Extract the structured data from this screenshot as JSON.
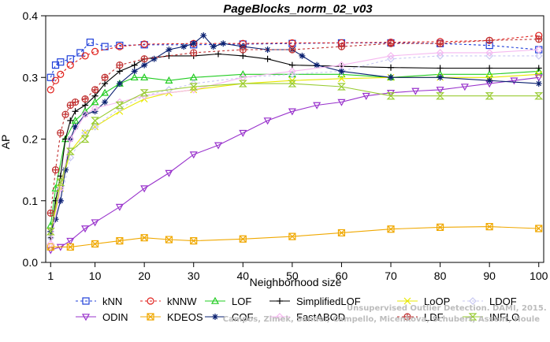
{
  "chart_data": {
    "type": "line",
    "title": "PageBlocks_norm_02_v03",
    "xlabel": "Neighborhood size",
    "ylabel": "AP",
    "xlim": [
      0,
      101
    ],
    "ylim": [
      0,
      0.4
    ],
    "x_ticks": [
      "1",
      "10",
      "20",
      "30",
      "40",
      "50",
      "60",
      "70",
      "80",
      "90",
      "100"
    ],
    "y_ticks": [
      "0.0",
      "0.1",
      "0.2",
      "0.3",
      "0.4"
    ],
    "grid": false,
    "legend_position": "bottom",
    "series": [
      {
        "name": "kNN",
        "color": "#1f3fd9",
        "marker": "square",
        "dash": "3,3",
        "points": [
          [
            1,
            0.3
          ],
          [
            2,
            0.32
          ],
          [
            3,
            0.325
          ],
          [
            5,
            0.33
          ],
          [
            7,
            0.34
          ],
          [
            9,
            0.357
          ],
          [
            12,
            0.35
          ],
          [
            15,
            0.352
          ],
          [
            20,
            0.353
          ],
          [
            30,
            0.353
          ],
          [
            40,
            0.354
          ],
          [
            50,
            0.355
          ],
          [
            60,
            0.356
          ],
          [
            70,
            0.356
          ],
          [
            80,
            0.355
          ],
          [
            90,
            0.352
          ],
          [
            100,
            0.345
          ]
        ]
      },
      {
        "name": "kNNW",
        "color": "#e0201c",
        "marker": "circle",
        "dash": "3,3",
        "points": [
          [
            1,
            0.28
          ],
          [
            2,
            0.295
          ],
          [
            3,
            0.305
          ],
          [
            5,
            0.32
          ],
          [
            8,
            0.335
          ],
          [
            10,
            0.342
          ],
          [
            15,
            0.35
          ],
          [
            20,
            0.354
          ],
          [
            30,
            0.355
          ],
          [
            40,
            0.355
          ],
          [
            50,
            0.356
          ],
          [
            60,
            0.356
          ],
          [
            70,
            0.357
          ],
          [
            80,
            0.358
          ],
          [
            90,
            0.36
          ],
          [
            100,
            0.368
          ]
        ]
      },
      {
        "name": "LOF",
        "color": "#22cc22",
        "marker": "triangle",
        "dash": "",
        "points": [
          [
            1,
            0.06
          ],
          [
            2,
            0.12
          ],
          [
            4,
            0.2
          ],
          [
            6,
            0.23
          ],
          [
            8,
            0.245
          ],
          [
            10,
            0.26
          ],
          [
            12,
            0.275
          ],
          [
            15,
            0.29
          ],
          [
            18,
            0.3
          ],
          [
            20,
            0.3
          ],
          [
            25,
            0.295
          ],
          [
            30,
            0.3
          ],
          [
            40,
            0.305
          ],
          [
            50,
            0.305
          ],
          [
            60,
            0.305
          ],
          [
            70,
            0.3
          ],
          [
            80,
            0.305
          ],
          [
            90,
            0.305
          ],
          [
            100,
            0.31
          ]
        ]
      },
      {
        "name": "SimplifiedLOF",
        "color": "#000000",
        "marker": "plus",
        "dash": "",
        "points": [
          [
            1,
            0.04
          ],
          [
            2,
            0.1
          ],
          [
            3,
            0.14
          ],
          [
            4,
            0.2
          ],
          [
            5,
            0.23
          ],
          [
            6,
            0.245
          ],
          [
            8,
            0.255
          ],
          [
            10,
            0.27
          ],
          [
            12,
            0.29
          ],
          [
            15,
            0.31
          ],
          [
            18,
            0.32
          ],
          [
            20,
            0.33
          ],
          [
            25,
            0.335
          ],
          [
            30,
            0.335
          ],
          [
            35,
            0.338
          ],
          [
            40,
            0.335
          ],
          [
            45,
            0.33
          ],
          [
            50,
            0.32
          ],
          [
            60,
            0.318
          ],
          [
            70,
            0.316
          ],
          [
            80,
            0.315
          ],
          [
            90,
            0.315
          ],
          [
            100,
            0.315
          ]
        ]
      },
      {
        "name": "LoOP",
        "color": "#e8e800",
        "marker": "x",
        "dash": "",
        "points": [
          [
            1,
            0.05
          ],
          [
            3,
            0.12
          ],
          [
            5,
            0.18
          ],
          [
            8,
            0.21
          ],
          [
            10,
            0.22
          ],
          [
            15,
            0.245
          ],
          [
            20,
            0.265
          ],
          [
            25,
            0.275
          ],
          [
            30,
            0.28
          ],
          [
            40,
            0.29
          ],
          [
            50,
            0.295
          ],
          [
            60,
            0.298
          ],
          [
            70,
            0.3
          ],
          [
            80,
            0.3
          ],
          [
            90,
            0.3
          ],
          [
            100,
            0.305
          ]
        ]
      },
      {
        "name": "LDOF",
        "color": "#c8c8f2",
        "marker": "diamond",
        "dash": "3,3",
        "points": [
          [
            1,
            0.04
          ],
          [
            3,
            0.1
          ],
          [
            5,
            0.17
          ],
          [
            8,
            0.21
          ],
          [
            10,
            0.22
          ],
          [
            15,
            0.25
          ],
          [
            20,
            0.27
          ],
          [
            25,
            0.28
          ],
          [
            30,
            0.29
          ],
          [
            40,
            0.3
          ],
          [
            50,
            0.305
          ],
          [
            60,
            0.31
          ],
          [
            70,
            0.33
          ],
          [
            80,
            0.335
          ],
          [
            90,
            0.335
          ],
          [
            100,
            0.335
          ]
        ]
      },
      {
        "name": "ODIN",
        "color": "#9933cc",
        "marker": "triangle-down",
        "dash": "",
        "points": [
          [
            1,
            0.02
          ],
          [
            3,
            0.025
          ],
          [
            5,
            0.035
          ],
          [
            8,
            0.055
          ],
          [
            10,
            0.065
          ],
          [
            15,
            0.09
          ],
          [
            20,
            0.12
          ],
          [
            25,
            0.145
          ],
          [
            30,
            0.175
          ],
          [
            35,
            0.19
          ],
          [
            40,
            0.21
          ],
          [
            45,
            0.23
          ],
          [
            50,
            0.245
          ],
          [
            55,
            0.255
          ],
          [
            60,
            0.26
          ],
          [
            65,
            0.27
          ],
          [
            70,
            0.275
          ],
          [
            75,
            0.278
          ],
          [
            80,
            0.28
          ],
          [
            85,
            0.285
          ],
          [
            90,
            0.29
          ],
          [
            95,
            0.295
          ],
          [
            100,
            0.3
          ]
        ]
      },
      {
        "name": "KDEOS",
        "color": "#f0a800",
        "marker": "square-x",
        "dash": "",
        "points": [
          [
            1,
            0.025
          ],
          [
            5,
            0.025
          ],
          [
            10,
            0.03
          ],
          [
            15,
            0.035
          ],
          [
            20,
            0.04
          ],
          [
            25,
            0.037
          ],
          [
            30,
            0.035
          ],
          [
            40,
            0.038
          ],
          [
            50,
            0.042
          ],
          [
            60,
            0.048
          ],
          [
            70,
            0.054
          ],
          [
            80,
            0.057
          ],
          [
            90,
            0.058
          ],
          [
            100,
            0.055
          ]
        ]
      },
      {
        "name": "COF",
        "color": "#0a2070",
        "marker": "asterisk",
        "dash": "",
        "points": [
          [
            1,
            0.05
          ],
          [
            2,
            0.07
          ],
          [
            3,
            0.1
          ],
          [
            4,
            0.15
          ],
          [
            5,
            0.2
          ],
          [
            6,
            0.22
          ],
          [
            8,
            0.24
          ],
          [
            10,
            0.245
          ],
          [
            12,
            0.26
          ],
          [
            15,
            0.29
          ],
          [
            18,
            0.31
          ],
          [
            20,
            0.32
          ],
          [
            22,
            0.33
          ],
          [
            25,
            0.345
          ],
          [
            28,
            0.35
          ],
          [
            30,
            0.355
          ],
          [
            32,
            0.368
          ],
          [
            34,
            0.35
          ],
          [
            36,
            0.355
          ],
          [
            40,
            0.35
          ],
          [
            45,
            0.345
          ],
          [
            50,
            0.345
          ],
          [
            52,
            0.335
          ],
          [
            55,
            0.32
          ],
          [
            60,
            0.31
          ],
          [
            70,
            0.3
          ],
          [
            80,
            0.3
          ],
          [
            90,
            0.295
          ],
          [
            100,
            0.29
          ]
        ]
      },
      {
        "name": "FastABOD",
        "color": "#f5b8f0",
        "marker": "diamond",
        "dash": "",
        "points": [
          [
            1,
            0.03
          ],
          [
            3,
            0.12
          ],
          [
            5,
            0.2
          ],
          [
            8,
            0.24
          ],
          [
            10,
            0.25
          ],
          [
            15,
            0.26
          ],
          [
            20,
            0.27
          ],
          [
            30,
            0.28
          ],
          [
            40,
            0.3
          ],
          [
            50,
            0.31
          ],
          [
            60,
            0.32
          ],
          [
            70,
            0.335
          ],
          [
            80,
            0.34
          ],
          [
            90,
            0.34
          ],
          [
            100,
            0.345
          ]
        ]
      },
      {
        "name": "LDF",
        "color": "#c03030",
        "marker": "circle-plus",
        "dash": "3,3",
        "points": [
          [
            1,
            0.08
          ],
          [
            2,
            0.15
          ],
          [
            3,
            0.21
          ],
          [
            4,
            0.24
          ],
          [
            5,
            0.255
          ],
          [
            6,
            0.26
          ],
          [
            8,
            0.265
          ],
          [
            10,
            0.28
          ],
          [
            12,
            0.3
          ],
          [
            15,
            0.32
          ],
          [
            20,
            0.33
          ],
          [
            30,
            0.34
          ],
          [
            40,
            0.345
          ],
          [
            50,
            0.345
          ],
          [
            60,
            0.35
          ],
          [
            70,
            0.355
          ],
          [
            80,
            0.355
          ],
          [
            90,
            0.36
          ],
          [
            100,
            0.362
          ]
        ]
      },
      {
        "name": "INFLO",
        "color": "#99cc33",
        "marker": "hourglass",
        "dash": "",
        "points": [
          [
            1,
            0.05
          ],
          [
            3,
            0.13
          ],
          [
            5,
            0.18
          ],
          [
            8,
            0.2
          ],
          [
            10,
            0.23
          ],
          [
            15,
            0.255
          ],
          [
            20,
            0.275
          ],
          [
            30,
            0.285
          ],
          [
            40,
            0.29
          ],
          [
            50,
            0.29
          ],
          [
            60,
            0.285
          ],
          [
            70,
            0.27
          ],
          [
            80,
            0.27
          ],
          [
            90,
            0.27
          ],
          [
            100,
            0.27
          ]
        ]
      }
    ]
  },
  "watermark": {
    "line1": "Unsupervised Outlier Detection. DAMI, 2015.",
    "line2": "Campos, Zimek, Sander, Campello, Micenkova, Schubert, Assent, Houle"
  }
}
